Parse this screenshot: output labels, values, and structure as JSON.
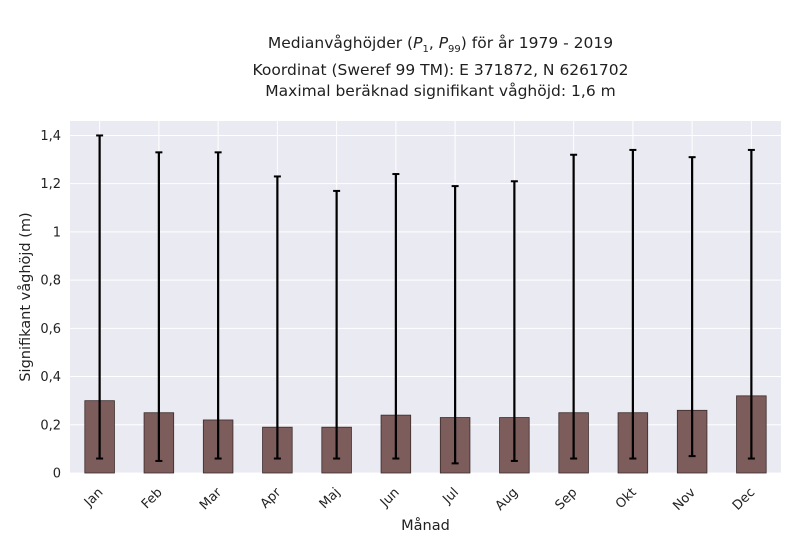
{
  "chart_data": {
    "type": "bar",
    "title_lines": [
      "Medianvåghöjder (P1, P99) för år 1979 - 2019",
      "Koordinat (Sweref 99 TM): E 371872, N 6261702",
      "Maximal beräknad signifikant våghöjd: 1,6 m"
    ],
    "title_parts": {
      "prefix": "Medianvåghöjder (",
      "p": "P",
      "sub1": "1",
      "sep": ", ",
      "sub2": "99",
      "suffix": ") för år 1979 - 2019"
    },
    "xlabel": "Månad",
    "ylabel": "Signifikant våghöjd (m)",
    "categories": [
      "Jan",
      "Feb",
      "Mar",
      "Apr",
      "Maj",
      "Jun",
      "Jul",
      "Aug",
      "Sep",
      "Okt",
      "Nov",
      "Dec"
    ],
    "values": [
      0.3,
      0.25,
      0.22,
      0.19,
      0.19,
      0.24,
      0.23,
      0.23,
      0.25,
      0.25,
      0.26,
      0.32
    ],
    "p1": [
      0.06,
      0.05,
      0.06,
      0.06,
      0.06,
      0.06,
      0.04,
      0.05,
      0.06,
      0.06,
      0.07,
      0.06
    ],
    "p99": [
      1.4,
      1.33,
      1.33,
      1.23,
      1.17,
      1.24,
      1.19,
      1.21,
      1.32,
      1.34,
      1.31,
      1.34
    ],
    "ylim": [
      0,
      1.46
    ],
    "yticks": [
      0,
      0.2,
      0.4,
      0.6,
      0.8,
      1.0,
      1.2,
      1.4
    ],
    "ytick_labels": [
      "0",
      "0,2",
      "0,4",
      "0,6",
      "0,8",
      "1",
      "1,2",
      "1,4"
    ],
    "grid": true,
    "colors": {
      "bar": "#7d5c5c",
      "bar_edge": "#3a2a2a",
      "errorbar": "#000000",
      "plot_background": "#eaeaf2",
      "grid": "#ffffff"
    }
  }
}
